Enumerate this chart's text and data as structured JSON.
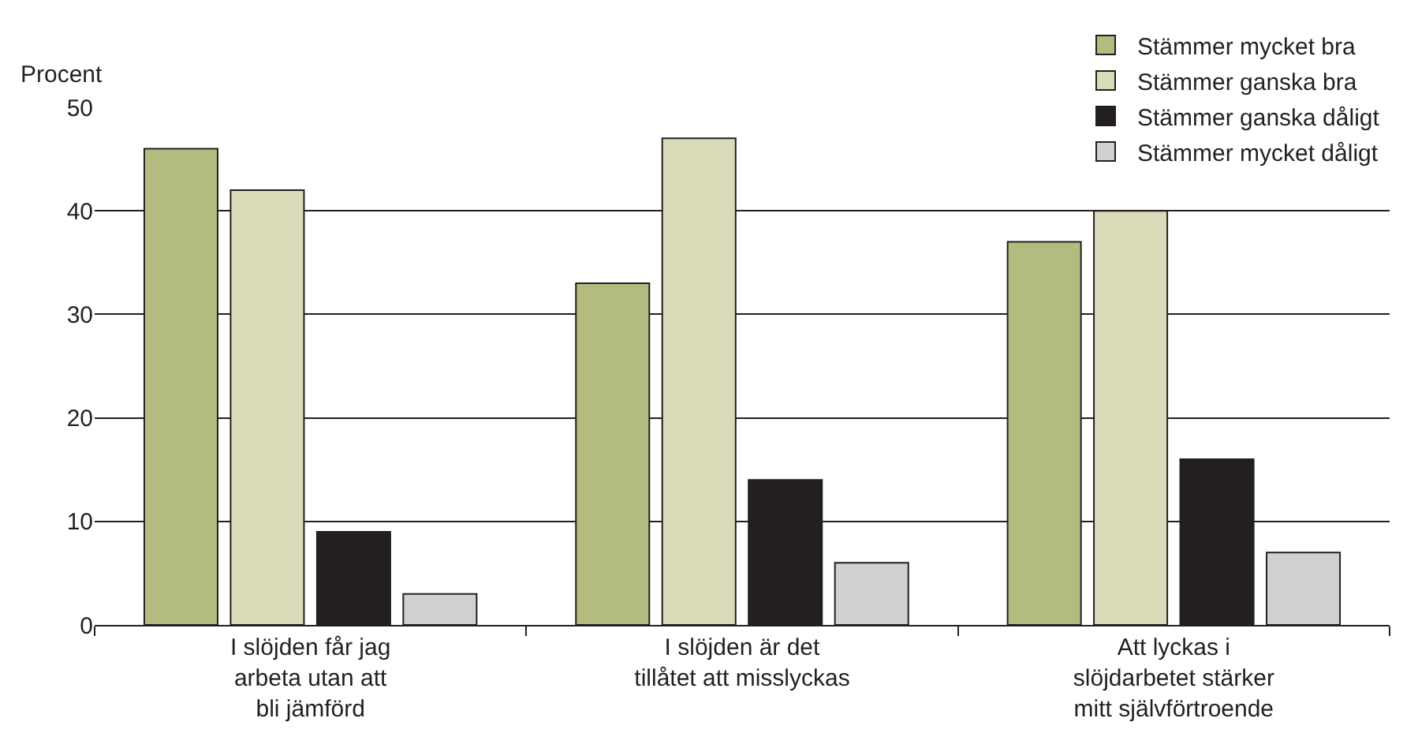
{
  "chart_data": {
    "type": "bar",
    "ylabel": "Procent",
    "categories": [
      "I slöjden får jag\narbeta utan att\nbli jämförd",
      "I slöjden är det\ntillåtet att misslyckas",
      "Att lyckas i\nslöjdarbetet stärker\nmitt självförtroende"
    ],
    "series": [
      {
        "name": "Stämmer mycket bra",
        "color": "#b3bb7e",
        "values": [
          46,
          33,
          37
        ]
      },
      {
        "name": "Stämmer ganska bra",
        "color": "#d9dbb9",
        "values": [
          42,
          47,
          40
        ]
      },
      {
        "name": "Stämmer ganska dåligt",
        "color": "#231f20",
        "values": [
          9,
          14,
          16
        ]
      },
      {
        "name": "Stämmer mycket dåligt",
        "color": "#cfd1d3",
        "values": [
          3,
          6,
          7
        ]
      }
    ],
    "ylim": [
      0,
      50
    ],
    "yticks": [
      0,
      10,
      20,
      30,
      40,
      50
    ],
    "grid": "y",
    "legend": "top right"
  }
}
